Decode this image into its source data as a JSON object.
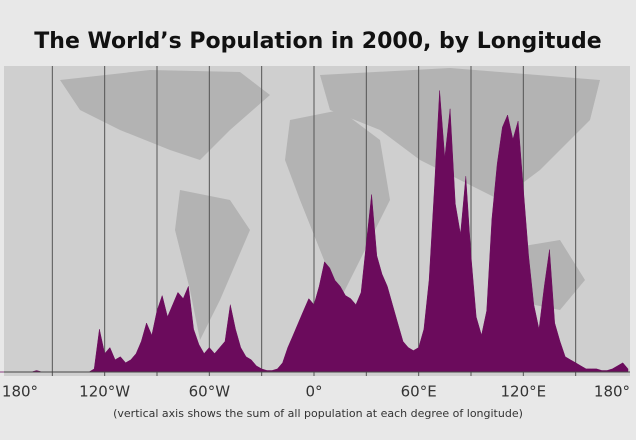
{
  "chart_data": {
    "type": "area",
    "title": "The World’s Population in 2000, by Longitude",
    "note": "(vertical axis shows the sum of all population at each degree of longitude)",
    "color": "#6b0b5c",
    "grid": true,
    "xlim": [
      -180,
      180
    ],
    "ylim": [
      0,
      100
    ],
    "xticks": [
      {
        "value": -180,
        "label": "180°"
      },
      {
        "value": -120,
        "label": "120°W"
      },
      {
        "value": -60,
        "label": "60°W"
      },
      {
        "value": 0,
        "label": "0°"
      },
      {
        "value": 60,
        "label": "60°E"
      },
      {
        "value": 120,
        "label": "120°E"
      },
      {
        "value": 180,
        "label": "180°"
      }
    ],
    "xminorticks": [
      -150,
      -90,
      -30,
      30,
      90,
      150
    ],
    "x": [
      -180,
      -177,
      -174,
      -171,
      -168,
      -165,
      -162,
      -159,
      -156,
      -153,
      -150,
      -147,
      -144,
      -141,
      -138,
      -135,
      -132,
      -129,
      -126,
      -123,
      -120,
      -117,
      -114,
      -111,
      -108,
      -105,
      -102,
      -99,
      -96,
      -93,
      -90,
      -87,
      -84,
      -81,
      -78,
      -75,
      -72,
      -69,
      -66,
      -63,
      -60,
      -57,
      -54,
      -51,
      -48,
      -45,
      -42,
      -39,
      -36,
      -33,
      -30,
      -27,
      -24,
      -21,
      -18,
      -15,
      -12,
      -9,
      -6,
      -3,
      0,
      3,
      6,
      9,
      12,
      15,
      18,
      21,
      24,
      27,
      30,
      33,
      36,
      39,
      42,
      45,
      48,
      51,
      54,
      57,
      60,
      63,
      66,
      69,
      72,
      75,
      78,
      81,
      84,
      87,
      90,
      93,
      96,
      99,
      102,
      105,
      108,
      111,
      114,
      117,
      120,
      123,
      126,
      129,
      132,
      135,
      138,
      141,
      144,
      147,
      150,
      153,
      156,
      159,
      162,
      165,
      168,
      171,
      174,
      177,
      180
    ],
    "values": [
      0,
      0,
      0,
      0,
      0,
      0,
      0,
      0.5,
      0,
      0,
      0,
      0,
      0,
      0,
      0,
      0,
      0,
      0,
      1,
      14,
      6,
      8,
      4,
      5,
      3,
      4,
      6,
      10,
      16,
      12,
      20,
      25,
      18,
      22,
      26,
      24,
      28,
      14,
      9,
      6,
      8,
      6,
      8,
      10,
      22,
      14,
      8,
      5,
      4,
      2,
      1,
      0.5,
      0.5,
      1,
      3,
      8,
      12,
      16,
      20,
      24,
      22,
      28,
      36,
      34,
      30,
      28,
      25,
      24,
      22,
      26,
      42,
      58,
      38,
      32,
      28,
      22,
      16,
      10,
      8,
      7,
      8,
      14,
      30,
      60,
      92,
      70,
      86,
      55,
      45,
      64,
      38,
      18,
      12,
      20,
      50,
      68,
      80,
      84,
      76,
      82,
      60,
      38,
      22,
      14,
      28,
      40,
      16,
      10,
      5,
      4,
      3,
      2,
      1,
      1,
      1,
      0.5,
      0.5,
      1,
      2,
      3,
      1
    ]
  }
}
